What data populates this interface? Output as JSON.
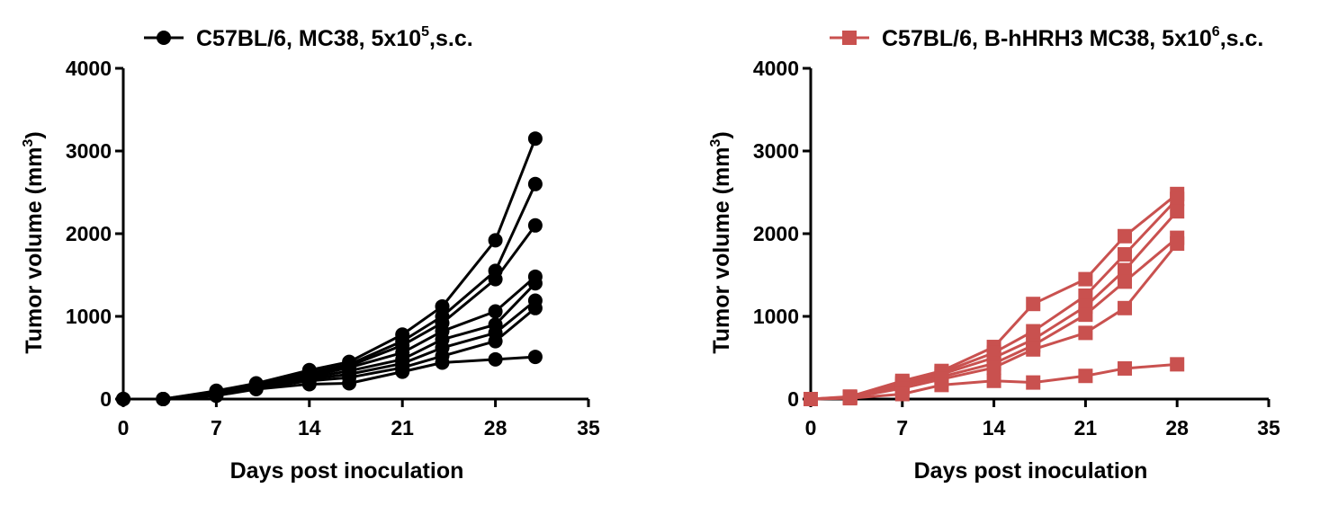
{
  "chart_data": [
    {
      "type": "line",
      "legend": {
        "label": "C57BL/6, MC38, 5x10",
        "superscript": "5",
        "suffix": ",s.c.",
        "marker": "circle",
        "placement": "top"
      },
      "color": "#000000",
      "xlabel": "Days post inoculation",
      "ylabel": "Tumor volume (mm",
      "ylabel_superscript": "3",
      "ylabel_suffix": ")",
      "xlim": [
        0,
        35
      ],
      "ylim": [
        0,
        4000
      ],
      "xticks": [
        0,
        7,
        14,
        21,
        28,
        35
      ],
      "yticks": [
        0,
        1000,
        2000,
        3000,
        4000
      ],
      "x": [
        0,
        3,
        7,
        10,
        14,
        17,
        21,
        24,
        28,
        31
      ],
      "series": [
        {
          "values": [
            0,
            0,
            100,
            190,
            350,
            450,
            780,
            1120,
            1920,
            3150
          ]
        },
        {
          "values": [
            0,
            0,
            90,
            180,
            320,
            420,
            700,
            1000,
            1550,
            2600
          ]
        },
        {
          "values": [
            0,
            0,
            80,
            170,
            300,
            400,
            650,
            920,
            1450,
            2100
          ]
        },
        {
          "values": [
            0,
            0,
            70,
            160,
            280,
            380,
            560,
            820,
            1060,
            1480
          ]
        },
        {
          "values": [
            0,
            0,
            60,
            150,
            260,
            340,
            480,
            720,
            900,
            1400
          ]
        },
        {
          "values": [
            0,
            0,
            60,
            140,
            240,
            300,
            430,
            620,
            800,
            1190
          ]
        },
        {
          "values": [
            0,
            0,
            50,
            130,
            220,
            260,
            380,
            520,
            700,
            1100
          ]
        },
        {
          "values": [
            0,
            0,
            40,
            120,
            180,
            190,
            330,
            440,
            480,
            510
          ]
        }
      ]
    },
    {
      "type": "line",
      "legend": {
        "label": "C57BL/6, B-hHRH3 MC38, 5x10",
        "superscript": "6",
        "suffix": ",s.c.",
        "marker": "square",
        "placement": "top"
      },
      "color": "#c9514f",
      "xlabel": "Days post inoculation",
      "ylabel": "Tumor volume (mm",
      "ylabel_superscript": "3",
      "ylabel_suffix": ")",
      "xlim": [
        0,
        35
      ],
      "ylim": [
        0,
        4000
      ],
      "xticks": [
        0,
        7,
        14,
        21,
        28,
        35
      ],
      "yticks": [
        0,
        1000,
        2000,
        3000,
        4000
      ],
      "x": [
        0,
        3,
        7,
        10,
        14,
        17,
        21,
        24,
        28
      ],
      "series": [
        {
          "values": [
            0,
            30,
            220,
            340,
            630,
            1150,
            1450,
            1970,
            2480
          ]
        },
        {
          "values": [
            0,
            25,
            200,
            320,
            560,
            820,
            1250,
            1750,
            2420
          ]
        },
        {
          "values": [
            0,
            20,
            180,
            300,
            500,
            720,
            1120,
            1560,
            2270
          ]
        },
        {
          "values": [
            0,
            20,
            160,
            270,
            430,
            650,
            1020,
            1420,
            1950
          ]
        },
        {
          "values": [
            0,
            15,
            130,
            240,
            380,
            600,
            800,
            1100,
            1880
          ]
        },
        {
          "values": [
            0,
            10,
            60,
            170,
            220,
            200,
            280,
            370,
            420
          ]
        }
      ]
    }
  ]
}
